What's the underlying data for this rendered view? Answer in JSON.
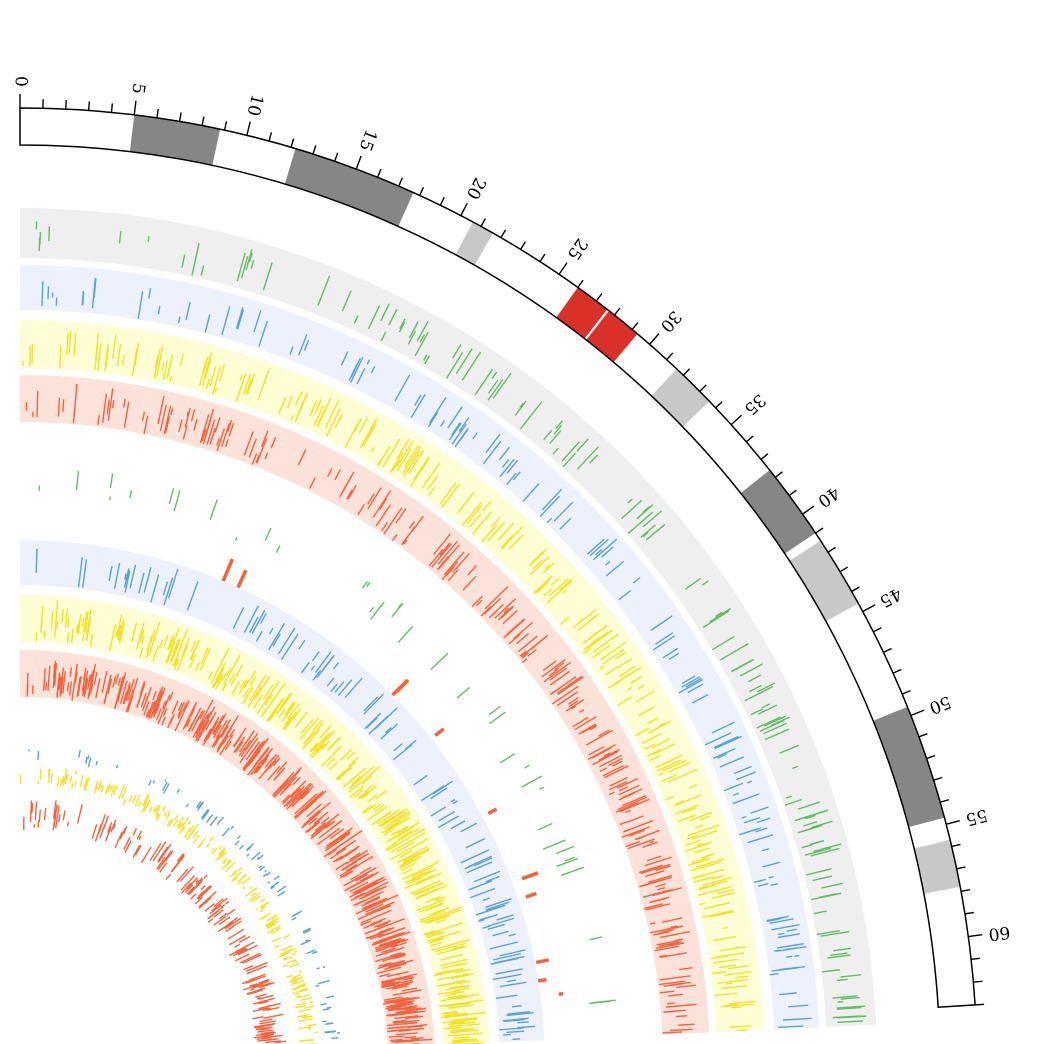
{
  "ideogram": {
    "start": 0,
    "end": 63,
    "tick_labels": [
      "0",
      "5",
      "10",
      "15",
      "20",
      "25",
      "30",
      "35",
      "40",
      "45",
      "50",
      "55",
      "60"
    ],
    "band_colors": {
      "gneg": "#ffffff",
      "gpos_dark": "#868686",
      "gpos_light": "#c8c8c8",
      "acen": "#d93027"
    },
    "bands": [
      {
        "start": 5.0,
        "end": 8.8,
        "type": "gpos_dark"
      },
      {
        "start": 12.2,
        "end": 17.7,
        "type": "gpos_dark"
      },
      {
        "start": 20.6,
        "end": 21.6,
        "type": "gpos_light"
      },
      {
        "start": 26.0,
        "end": 27.6,
        "type": "acen"
      },
      {
        "start": 27.7,
        "end": 29.3,
        "type": "acen"
      },
      {
        "start": 31.6,
        "end": 33.6,
        "type": "gpos_light"
      },
      {
        "start": 37.6,
        "end": 41.0,
        "type": "gpos_dark"
      },
      {
        "start": 41.4,
        "end": 44.6,
        "type": "gpos_light"
      },
      {
        "start": 49.6,
        "end": 54.7,
        "type": "gpos_dark"
      },
      {
        "start": 55.7,
        "end": 57.8,
        "type": "gpos_light"
      }
    ]
  },
  "tracks": [
    {
      "name": "outer-green",
      "background": "#efefef",
      "mark_color": "#66bb66"
    },
    {
      "name": "outer-blue",
      "background": "#edf1fc",
      "mark_color": "#5ba3cf"
    },
    {
      "name": "outer-yellow",
      "background": "#fefdd3",
      "mark_color": "#f2e12a"
    },
    {
      "name": "outer-red",
      "background": "#fde2d9",
      "mark_color": "#f4623f"
    },
    {
      "name": "links-green",
      "background": "#ffffff",
      "mark_color": "#66bb66"
    },
    {
      "name": "links-red",
      "background": "#ffffff",
      "mark_color": "#f4623f"
    },
    {
      "name": "inner-blue",
      "background": "#edf1fc",
      "mark_color": "#5ba3cf"
    },
    {
      "name": "inner-yellow",
      "background": "#fefdd3",
      "mark_color": "#f2e12a"
    },
    {
      "name": "inner-red",
      "background": "#fde2d9",
      "mark_color": "#f4623f"
    },
    {
      "name": "core-blue",
      "background": "#ffffff",
      "mark_color": "#5ba3cf"
    },
    {
      "name": "core-yellow",
      "background": "#ffffff",
      "mark_color": "#f2e12a"
    },
    {
      "name": "core-red",
      "background": "#ffffff",
      "mark_color": "#f4623f"
    }
  ]
}
